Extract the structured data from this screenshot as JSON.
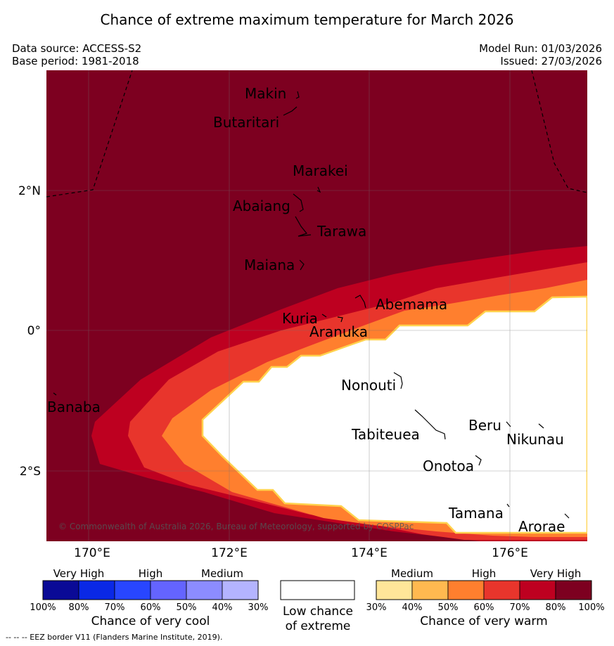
{
  "title": "Chance of extreme maximum temperature for March 2026",
  "meta": {
    "data_source": "Data source: ACCESS-S2",
    "base_period": "Base period: 1981-2018",
    "model_run": "Model Run: 01/03/2026",
    "issued": "Issued: 27/03/2026"
  },
  "map": {
    "copyright": "© Commonwealth of Australia 2026, Bureau of Meteorology, supported by COSPPac",
    "lon_labels": [
      "170°E",
      "172°E",
      "174°E",
      "176°E"
    ],
    "lat_labels": [
      "2°N",
      "0°",
      "2°S"
    ],
    "places": [
      "Makin",
      "Butaritari",
      "Marakei",
      "Abaiang",
      "Tarawa",
      "Maiana",
      "Abemama",
      "Kuria",
      "Aranuka",
      "Nonouti",
      "Banaba",
      "Tabiteuea",
      "Beru",
      "Nikunau",
      "Onotoa",
      "Tamana",
      "Arorae"
    ]
  },
  "colors": {
    "very_high_warm": "#7d0020",
    "high_70": "#be0020",
    "high_60": "#e8352c",
    "medium_50": "#ff7f2e",
    "low": "#ffffff",
    "border": "#ffd24d"
  },
  "legend_cool": {
    "categories": [
      "Very High",
      "High",
      "Medium"
    ],
    "colors": [
      "#0a0a96",
      "#0a28e6",
      "#2846ff",
      "#6464ff",
      "#8c8cff",
      "#b4b4ff"
    ],
    "ticks": [
      "100%",
      "80%",
      "70%",
      "60%",
      "50%",
      "40%",
      "30%"
    ],
    "title": "Chance of very cool"
  },
  "legend_neutral": {
    "line1": "Low chance",
    "line2": "of extreme"
  },
  "legend_warm": {
    "categories": [
      "Medium",
      "High",
      "Very High"
    ],
    "colors": [
      "#ffe699",
      "#ffb950",
      "#ff7f2e",
      "#e8352c",
      "#be0020",
      "#7d0020"
    ],
    "ticks": [
      "30%",
      "40%",
      "50%",
      "60%",
      "70%",
      "80%",
      "100%"
    ],
    "title": "Chance of very warm"
  },
  "footer": "--  --  -- EEZ border V11 (Flanders Marine Institute, 2019)."
}
